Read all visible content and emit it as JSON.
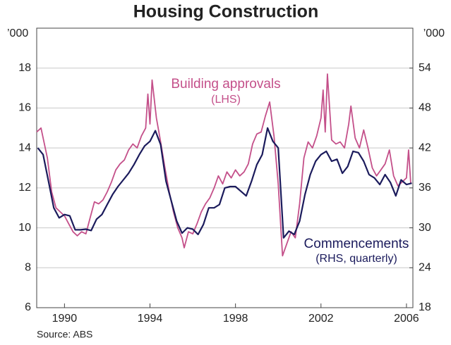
{
  "chart_data": {
    "type": "line",
    "title": "Housing Construction",
    "ylabel": "’000",
    "y2label": "’000",
    "xlim": [
      1988.7,
      2006.3
    ],
    "xticks": [
      1990,
      1994,
      1998,
      2002,
      2006
    ],
    "ylim": [
      6,
      20
    ],
    "yticks": [
      6,
      8,
      10,
      12,
      14,
      16,
      18
    ],
    "y2lim": [
      18,
      60
    ],
    "y2ticks": [
      18,
      24,
      30,
      36,
      42,
      48,
      54
    ],
    "grid": true,
    "series": [
      {
        "name": "Building approvals",
        "color": "#c4508a",
        "x": [
          1988.7,
          1988.9,
          1989.0,
          1989.2,
          1989.4,
          1989.6,
          1989.8,
          1990.0,
          1990.2,
          1990.4,
          1990.6,
          1990.8,
          1991.0,
          1991.2,
          1991.4,
          1991.6,
          1991.8,
          1992.0,
          1992.2,
          1992.4,
          1992.6,
          1992.8,
          1993.0,
          1993.2,
          1993.4,
          1993.6,
          1993.8,
          1993.9,
          1994.0,
          1994.1,
          1994.3,
          1994.5,
          1994.7,
          1994.9,
          1995.1,
          1995.3,
          1995.5,
          1995.6,
          1995.8,
          1996.0,
          1996.2,
          1996.4,
          1996.6,
          1996.8,
          1997.0,
          1997.2,
          1997.4,
          1997.6,
          1997.8,
          1998.0,
          1998.2,
          1998.4,
          1998.6,
          1998.8,
          1999.0,
          1999.2,
          1999.4,
          1999.6,
          1999.8,
          2000.0,
          2000.2,
          2000.4,
          2000.6,
          2000.8,
          2001.0,
          2001.2,
          2001.4,
          2001.6,
          2001.8,
          2002.0,
          2002.1,
          2002.2,
          2002.3,
          2002.5,
          2002.7,
          2002.9,
          2003.1,
          2003.3,
          2003.4,
          2003.6,
          2003.8,
          2004.0,
          2004.2,
          2004.4,
          2004.6,
          2004.8,
          2005.0,
          2005.2,
          2005.4,
          2005.6,
          2005.8,
          2006.0,
          2006.1,
          2006.2
        ],
        "values": [
          14.8,
          15.0,
          14.5,
          13.5,
          11.8,
          11.0,
          10.8,
          10.6,
          10.2,
          9.8,
          9.6,
          9.8,
          9.7,
          10.5,
          11.3,
          11.2,
          11.4,
          11.8,
          12.3,
          12.9,
          13.2,
          13.4,
          13.9,
          14.2,
          14.0,
          14.6,
          15.0,
          16.7,
          15.2,
          17.4,
          15.5,
          14.3,
          13.0,
          11.8,
          10.8,
          10.0,
          9.5,
          9.0,
          9.8,
          9.7,
          10.2,
          10.8,
          11.2,
          11.5,
          12.0,
          12.6,
          12.2,
          12.8,
          12.5,
          12.9,
          12.6,
          12.8,
          13.2,
          14.2,
          14.7,
          14.8,
          15.6,
          16.3,
          14.6,
          12.2,
          8.6,
          9.2,
          9.8,
          9.5,
          11.2,
          13.5,
          14.3,
          14.0,
          14.6,
          15.5,
          16.9,
          14.8,
          17.7,
          14.4,
          14.2,
          14.3,
          14.0,
          15.2,
          16.1,
          14.5,
          14.0,
          14.9,
          14.0,
          13.0,
          12.6,
          12.9,
          13.2,
          13.9,
          12.6,
          12.1,
          12.3,
          12.5,
          13.9,
          12.2
        ]
      },
      {
        "name": "Commencements",
        "color": "#1b1b5c",
        "axis": "y2",
        "x": [
          1988.75,
          1989.0,
          1989.25,
          1989.5,
          1989.75,
          1990.0,
          1990.25,
          1990.5,
          1990.75,
          1991.0,
          1991.25,
          1991.5,
          1991.75,
          1992.0,
          1992.25,
          1992.5,
          1992.75,
          1993.0,
          1993.25,
          1993.5,
          1993.75,
          1994.0,
          1994.25,
          1994.5,
          1994.75,
          1995.0,
          1995.25,
          1995.5,
          1995.75,
          1996.0,
          1996.25,
          1996.5,
          1996.75,
          1997.0,
          1997.25,
          1997.5,
          1997.75,
          1998.0,
          1998.25,
          1998.5,
          1998.75,
          1999.0,
          1999.25,
          1999.5,
          1999.75,
          2000.0,
          2000.25,
          2000.5,
          2000.75,
          2001.0,
          2001.25,
          2001.5,
          2001.75,
          2002.0,
          2002.25,
          2002.5,
          2002.75,
          2003.0,
          2003.25,
          2003.5,
          2003.75,
          2004.0,
          2004.25,
          2004.5,
          2004.75,
          2005.0,
          2005.25,
          2005.5,
          2005.75,
          2006.0,
          2006.25
        ],
        "values": [
          42,
          41,
          37,
          33,
          31.5,
          32,
          31.8,
          29.7,
          29.7,
          29.8,
          29.6,
          31.3,
          32,
          33.5,
          35,
          36.2,
          37.2,
          38.2,
          39.5,
          41,
          42.3,
          43,
          44.6,
          42.5,
          37,
          34,
          31,
          29.2,
          30,
          29.8,
          29,
          30.5,
          33,
          33,
          33.5,
          36,
          36.2,
          36.2,
          35.5,
          34.8,
          37,
          39.5,
          41,
          45,
          43,
          42,
          28.5,
          29.5,
          29,
          31,
          35,
          38,
          40,
          41,
          41.5,
          40,
          40.3,
          38.2,
          39.2,
          41.5,
          41.3,
          40,
          38,
          37.5,
          36.5,
          38,
          36.8,
          34.8,
          37.2,
          36.5,
          36.7
        ]
      }
    ],
    "annotations": [
      "Building approvals",
      "(LHS)",
      "Commencements",
      "(RHS, quarterly)"
    ],
    "source": "Source: ABS"
  }
}
